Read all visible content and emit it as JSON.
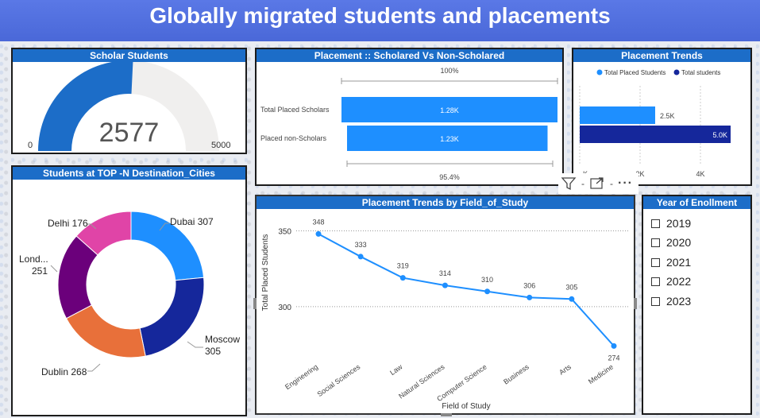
{
  "title": "Globally migrated students and placements",
  "scholar": {
    "title": "Scholar Students",
    "value": "2577",
    "min": "0",
    "max": "5000",
    "fraction": 0.5154,
    "color_fill": "#1c6dc8",
    "color_track": "#f0efee"
  },
  "placement": {
    "title": "Placement :: Scholared Vs Non-Scholared",
    "top_label": "100%",
    "bottom_label": "95.4%",
    "rows": [
      {
        "label": "Total Placed Scholars",
        "value_label": "1.28K",
        "fraction": 1.0
      },
      {
        "label": "Placed non-Scholars",
        "value_label": "1.23K",
        "fraction": 0.954
      }
    ],
    "bar_color": "#1e8fff"
  },
  "trends": {
    "title": "Placement Trends",
    "legend": [
      {
        "name": "Total Placed Students",
        "color": "#1e8fff"
      },
      {
        "name": "Total students",
        "color": "#15279b"
      }
    ],
    "ticks": [
      "K",
      "2K",
      "4K"
    ],
    "bars": [
      {
        "value": 2.5,
        "label": "2.5K"
      },
      {
        "value": 5.0,
        "label": "5.0K"
      }
    ]
  },
  "cities": {
    "title": "Students at TOP -N Destination_Cities",
    "slices": [
      {
        "name": "Dubai",
        "value": 307,
        "label": "Dubai 307",
        "color": "#1e8fff"
      },
      {
        "name": "Moscow",
        "value": 305,
        "label1": "Moscow",
        "label2": "305",
        "color": "#15279b"
      },
      {
        "name": "Dublin",
        "value": 268,
        "label": "Dublin 268",
        "color": "#e8703a"
      },
      {
        "name": "London",
        "value": 251,
        "label1": "Lond...",
        "label2": "251",
        "color": "#6b007b"
      },
      {
        "name": "Delhi",
        "value": 176,
        "label": "Delhi 176",
        "color": "#e044a7"
      }
    ]
  },
  "field": {
    "title": "Placement Trends by Field_of_Study",
    "ylabel": "Total Placed Students",
    "xlabel": "Field of Study",
    "line_color": "#1e8fff"
  },
  "chart_data": {
    "type": "line",
    "title": "Placement Trends by Field_of_Study",
    "xlabel": "Field of Study",
    "ylabel": "Total Placed Students",
    "categories": [
      "Engineering",
      "Social Sciences",
      "Law",
      "Natural Sciences",
      "Computer Science",
      "Business",
      "Arts",
      "Medicine"
    ],
    "values": [
      348,
      333,
      319,
      314,
      310,
      306,
      305,
      274
    ],
    "yticks": [
      300,
      350
    ],
    "ylim": [
      270,
      355
    ],
    "grid": true
  },
  "enrollment": {
    "title": "Year of Enollment",
    "years": [
      "2019",
      "2020",
      "2021",
      "2022",
      "2023"
    ]
  },
  "toolbar": {
    "more": "···"
  }
}
